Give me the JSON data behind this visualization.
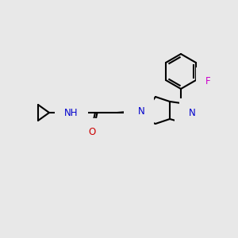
{
  "background_color": "#e8e8e8",
  "bond_color": "#000000",
  "bond_width": 1.5,
  "atom_colors": {
    "N": "#0000cc",
    "O": "#cc0000",
    "F": "#cc00cc",
    "H": "#4a8f8f",
    "C": "#000000"
  },
  "font_size_atom": 8.5,
  "fig_width": 3.0,
  "fig_height": 3.0,
  "dpi": 100
}
